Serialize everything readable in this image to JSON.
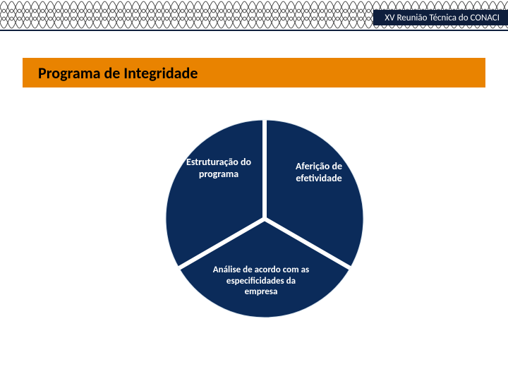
{
  "header": {
    "ribbon_text": "XV Reunião Técnica do CONACI",
    "ribbon_bg": "#0f1f3d",
    "pattern_color": "#4a4a4a",
    "underline_color": "#0f1f3d"
  },
  "title_bar": {
    "text": "Programa de Integridade",
    "bg": "#e98300"
  },
  "pie": {
    "type": "pie",
    "radius": 140,
    "gap_width": 6,
    "gap_color": "#ffffff",
    "background_color": "#ffffff",
    "slices": [
      {
        "label": "Estruturação do programa",
        "start_deg": -90,
        "end_deg": 30,
        "fill": "#0b2b5a",
        "label_fontsize": 14,
        "label_fontweight": "600",
        "border_color": "#dbe6ef",
        "border_width": 1
      },
      {
        "label": "Aferição de efetividade",
        "start_deg": 30,
        "end_deg": 150,
        "fill": "#0b2b5a",
        "label_fontsize": 14,
        "label_fontweight": "600",
        "border_color": "#dbe6ef",
        "border_width": 1
      },
      {
        "label": "Análise de acordo com as especificidades da empresa",
        "start_deg": 150,
        "end_deg": 270,
        "fill": "#0b2b5a",
        "label_fontsize": 13,
        "label_fontweight": "600",
        "border_color": "#dbe6ef",
        "border_width": 1
      }
    ]
  }
}
